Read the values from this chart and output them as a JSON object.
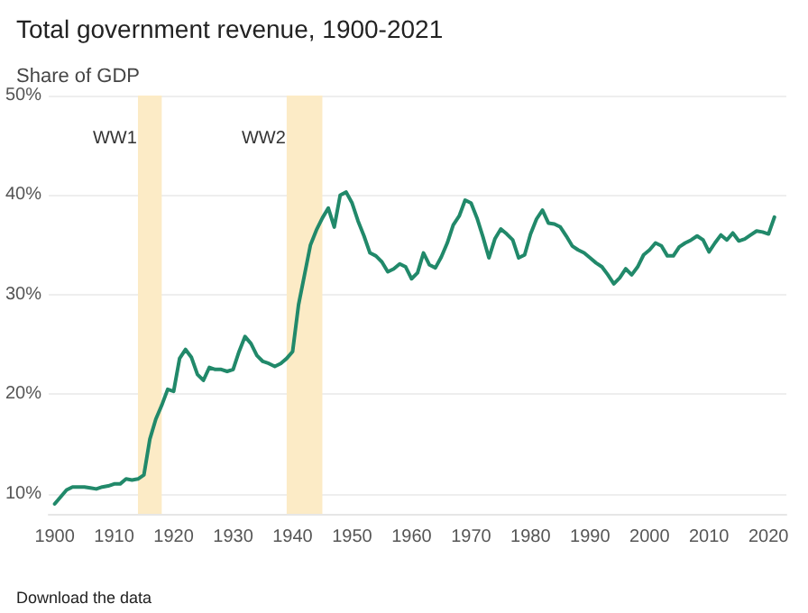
{
  "chart_data": {
    "type": "line",
    "title": "Total government revenue, 1900-2021",
    "ylabel": "Share of GDP",
    "annotations": [
      "Download the data"
    ],
    "x": [
      1900,
      1901,
      1902,
      1903,
      1904,
      1905,
      1906,
      1907,
      1908,
      1909,
      1910,
      1911,
      1912,
      1913,
      1914,
      1915,
      1916,
      1917,
      1918,
      1919,
      1920,
      1921,
      1922,
      1923,
      1924,
      1925,
      1926,
      1927,
      1928,
      1929,
      1930,
      1931,
      1932,
      1933,
      1934,
      1935,
      1936,
      1937,
      1938,
      1939,
      1940,
      1941,
      1942,
      1943,
      1944,
      1945,
      1946,
      1947,
      1948,
      1949,
      1950,
      1951,
      1952,
      1953,
      1954,
      1955,
      1956,
      1957,
      1958,
      1959,
      1960,
      1961,
      1962,
      1963,
      1964,
      1965,
      1966,
      1967,
      1968,
      1969,
      1970,
      1971,
      1972,
      1973,
      1974,
      1975,
      1976,
      1977,
      1978,
      1979,
      1980,
      1981,
      1982,
      1983,
      1984,
      1985,
      1986,
      1987,
      1988,
      1989,
      1990,
      1991,
      1992,
      1993,
      1994,
      1995,
      1996,
      1997,
      1998,
      1999,
      2000,
      2001,
      2002,
      2003,
      2004,
      2005,
      2006,
      2007,
      2008,
      2009,
      2010,
      2011,
      2012,
      2013,
      2014,
      2015,
      2016,
      2017,
      2018,
      2019,
      2020,
      2021
    ],
    "series": [
      {
        "color": "#21896a",
        "values": [
          9.0,
          9.7,
          10.4,
          10.7,
          10.7,
          10.7,
          10.6,
          10.5,
          10.7,
          10.8,
          11.0,
          11.0,
          11.5,
          11.4,
          11.5,
          11.9,
          15.5,
          17.5,
          18.9,
          20.5,
          20.3,
          23.6,
          24.5,
          23.7,
          22.0,
          21.4,
          22.7,
          22.5,
          22.5,
          22.3,
          22.5,
          24.3,
          25.8,
          25.1,
          23.9,
          23.3,
          23.1,
          22.8,
          23.1,
          23.6,
          24.3,
          29.0,
          32.0,
          35.0,
          36.5,
          37.7,
          38.7,
          36.8,
          40.0,
          40.3,
          39.2,
          37.4,
          35.9,
          34.2,
          33.9,
          33.3,
          32.3,
          32.6,
          33.1,
          32.8,
          31.6,
          32.2,
          34.2,
          33.0,
          32.7,
          33.8,
          35.2,
          37.0,
          37.9,
          39.5,
          39.2,
          37.7,
          35.8,
          33.7,
          35.6,
          36.6,
          36.1,
          35.5,
          33.7,
          34.0,
          36.1,
          37.6,
          38.5,
          37.2,
          37.1,
          36.8,
          35.9,
          34.9,
          34.5,
          34.2,
          33.7,
          33.2,
          32.8,
          32.0,
          31.1,
          31.7,
          32.6,
          32.0,
          32.8,
          34.0,
          34.5,
          35.2,
          34.9,
          33.9,
          33.9,
          34.8,
          35.2,
          35.5,
          35.9,
          35.5,
          34.3,
          35.2,
          36.0,
          35.5,
          36.2,
          35.4,
          35.6,
          36.0,
          36.4,
          36.3,
          36.1,
          37.8
        ]
      }
    ],
    "xlim": [
      1899,
      2023
    ],
    "xticks": [
      1900,
      1910,
      1920,
      1930,
      1940,
      1950,
      1960,
      1970,
      1980,
      1990,
      2000,
      2010,
      2020
    ],
    "ylim": [
      8,
      50
    ],
    "yticks": [
      {
        "value": 10,
        "label": "10%"
      },
      {
        "value": 20,
        "label": "20%"
      },
      {
        "value": 30,
        "label": "30%"
      },
      {
        "value": 40,
        "label": "40%"
      },
      {
        "value": 50,
        "label": "50%"
      }
    ],
    "bands": [
      {
        "axis": "x",
        "from": 1914,
        "to": 1918,
        "label": "WW1",
        "color": "#fcebc6"
      },
      {
        "axis": "x",
        "from": 1939,
        "to": 1945,
        "label": "WW2",
        "color": "#fcebc6"
      }
    ],
    "grid": "y",
    "marker": "none",
    "line_style": "solid"
  }
}
